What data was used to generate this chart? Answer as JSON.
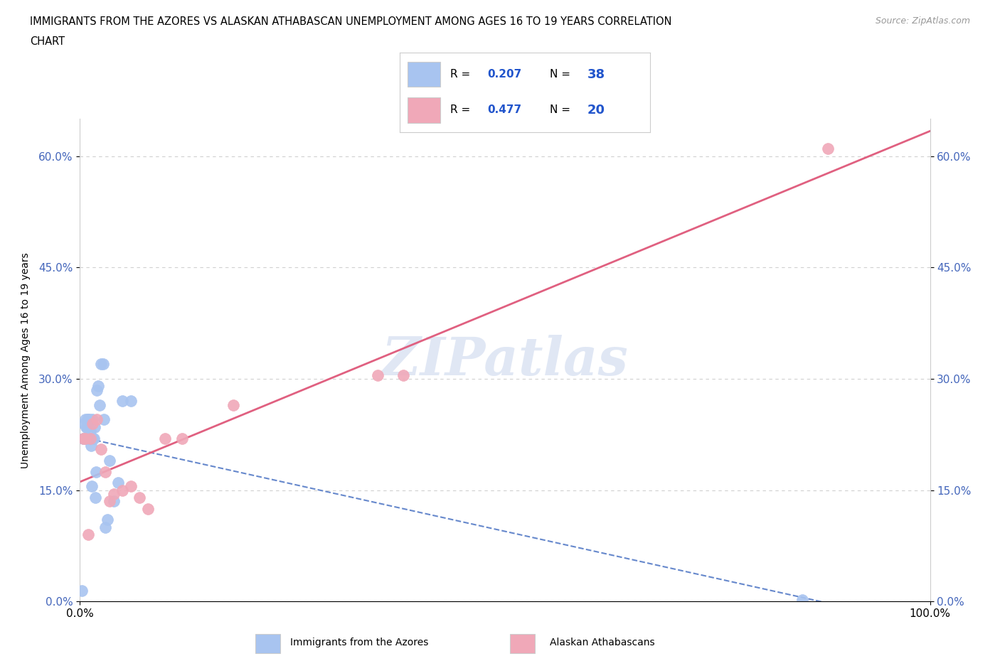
{
  "title_line1": "IMMIGRANTS FROM THE AZORES VS ALASKAN ATHABASCAN UNEMPLOYMENT AMONG AGES 16 TO 19 YEARS CORRELATION",
  "title_line2": "CHART",
  "source_text": "Source: ZipAtlas.com",
  "ylabel": "Unemployment Among Ages 16 to 19 years",
  "xlim": [
    0.0,
    1.0
  ],
  "ylim": [
    0.0,
    0.65
  ],
  "ytick_values": [
    0.0,
    0.15,
    0.3,
    0.45,
    0.6
  ],
  "ytick_labels": [
    "0.0%",
    "15.0%",
    "30.0%",
    "45.0%",
    "60.0%"
  ],
  "watermark": "ZIPatlas",
  "azores_color": "#a8c4f0",
  "athabascan_color": "#f0a8b8",
  "trendline1_color": "#6688cc",
  "trendline2_color": "#e06080",
  "azores_x": [
    0.002,
    0.004,
    0.005,
    0.006,
    0.007,
    0.007,
    0.008,
    0.008,
    0.009,
    0.009,
    0.01,
    0.01,
    0.011,
    0.011,
    0.012,
    0.012,
    0.013,
    0.014,
    0.015,
    0.015,
    0.016,
    0.017,
    0.018,
    0.019,
    0.02,
    0.021,
    0.023,
    0.025,
    0.027,
    0.028,
    0.03,
    0.032,
    0.035,
    0.04,
    0.045,
    0.05,
    0.06,
    0.85
  ],
  "azores_y": [
    0.015,
    0.22,
    0.24,
    0.245,
    0.22,
    0.235,
    0.22,
    0.235,
    0.22,
    0.245,
    0.22,
    0.245,
    0.22,
    0.245,
    0.22,
    0.23,
    0.21,
    0.155,
    0.22,
    0.245,
    0.22,
    0.235,
    0.14,
    0.175,
    0.285,
    0.29,
    0.265,
    0.32,
    0.32,
    0.245,
    0.1,
    0.11,
    0.19,
    0.135,
    0.16,
    0.27,
    0.27,
    0.002
  ],
  "athabascan_x": [
    0.004,
    0.006,
    0.01,
    0.012,
    0.015,
    0.02,
    0.025,
    0.03,
    0.035,
    0.04,
    0.05,
    0.06,
    0.07,
    0.08,
    0.1,
    0.12,
    0.18,
    0.35,
    0.38,
    0.88
  ],
  "athabascan_y": [
    0.22,
    0.22,
    0.09,
    0.22,
    0.24,
    0.245,
    0.205,
    0.175,
    0.135,
    0.145,
    0.15,
    0.155,
    0.14,
    0.125,
    0.22,
    0.22,
    0.265,
    0.305,
    0.305,
    0.61
  ]
}
